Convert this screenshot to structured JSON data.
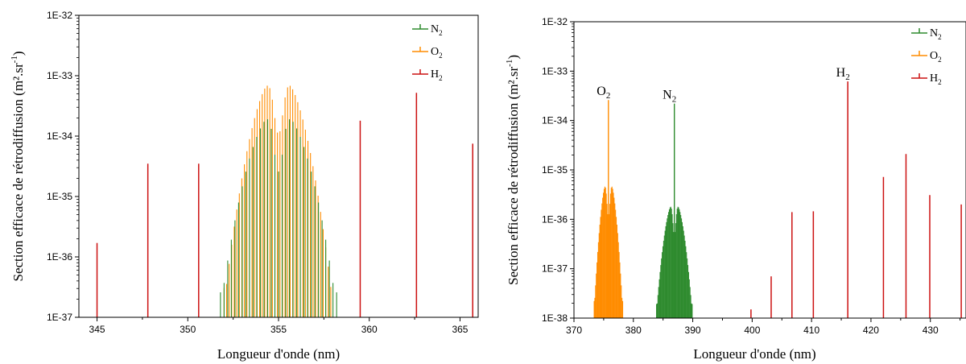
{
  "chart_data": [
    {
      "type": "bar",
      "xlabel": "Longueur d'onde (nm)",
      "ylabel": "Section efficace de rétrodiffusion (m².sr",
      "ylabel_sup": "-1",
      "ylabel_close": ")",
      "xlim": [
        344,
        366
      ],
      "xticks": [
        345,
        350,
        355,
        360,
        365
      ],
      "ylim": [
        1e-37,
        1e-32
      ],
      "yscale": "log",
      "yticks": [
        {
          "value": 1e-37,
          "label": "1E-37"
        },
        {
          "value": 1e-36,
          "label": "1E-36"
        },
        {
          "value": 1e-35,
          "label": "1E-35"
        },
        {
          "value": 1e-34,
          "label": "1E-34"
        },
        {
          "value": 1e-33,
          "label": "1E-33"
        },
        {
          "value": 1e-32,
          "label": "1E-32"
        }
      ],
      "legend_position": "top-right",
      "legend": [
        {
          "name": "N",
          "sub": "2",
          "color": "#2e8b2e"
        },
        {
          "name": "O",
          "sub": "2",
          "color": "#ff8c00"
        },
        {
          "name": "H",
          "sub": "2",
          "color": "#cc1111"
        }
      ],
      "series": [
        {
          "name": "O2",
          "color": "#ff8c00",
          "band": {
            "center": 355.0,
            "half_width": 3.0,
            "spacing": 0.14,
            "peak": 1.1e-33,
            "notch": 0.25
          }
        },
        {
          "name": "N2",
          "color": "#2e8b2e",
          "band": {
            "center": 355.0,
            "half_width": 3.2,
            "spacing": 0.2,
            "peak": 2.8e-34,
            "notch": 0.3
          }
        },
        {
          "name": "H2",
          "color": "#cc1111",
          "lines": [
            {
              "x": 345.0,
              "y": 1.7e-36
            },
            {
              "x": 347.8,
              "y": 3.5e-35
            },
            {
              "x": 350.6,
              "y": 3.5e-35
            },
            {
              "x": 359.5,
              "y": 1.8e-34
            },
            {
              "x": 362.6,
              "y": 5.2e-34
            },
            {
              "x": 365.7,
              "y": 7.5e-35
            }
          ]
        }
      ],
      "annotations": []
    },
    {
      "type": "bar",
      "xlabel": "Longueur d'onde (nm)",
      "ylabel": "Section efficace de rétrodiffusion (m².sr",
      "ylabel_sup": "-1",
      "ylabel_close": ")",
      "xlim": [
        370,
        436
      ],
      "xticks": [
        370,
        380,
        390,
        400,
        410,
        420,
        430
      ],
      "ylim": [
        1e-38,
        1e-32
      ],
      "yscale": "log",
      "yticks": [
        {
          "value": 1e-38,
          "label": "1E-38"
        },
        {
          "value": 1e-37,
          "label": "1E-37"
        },
        {
          "value": 1e-36,
          "label": "1E-36"
        },
        {
          "value": 1e-35,
          "label": "1E-35"
        },
        {
          "value": 1e-34,
          "label": "1E-34"
        },
        {
          "value": 1e-33,
          "label": "1E-33"
        },
        {
          "value": 1e-32,
          "label": "1E-32"
        }
      ],
      "legend_position": "top-right",
      "legend": [
        {
          "name": "N",
          "sub": "2",
          "color": "#2e8b2e"
        },
        {
          "name": "O",
          "sub": "2",
          "color": "#ff8c00"
        },
        {
          "name": "H",
          "sub": "2",
          "color": "#cc1111"
        }
      ],
      "series": [
        {
          "name": "O2",
          "color": "#ff8c00",
          "band": {
            "center": 375.8,
            "half_width": 2.4,
            "spacing": 0.12,
            "peak": 7.5e-36,
            "notch": 0.3
          },
          "peak_line": {
            "x": 375.8,
            "y": 2.6e-34
          }
        },
        {
          "name": "N2",
          "color": "#2e8b2e",
          "band": {
            "center": 386.9,
            "half_width": 3.0,
            "spacing": 0.12,
            "peak": 2.4e-36,
            "notch": 0.3
          },
          "peak_line": {
            "x": 386.9,
            "y": 2.2e-34
          }
        },
        {
          "name": "H2",
          "color": "#cc1111",
          "lines": [
            {
              "x": 399.8,
              "y": 1.5e-38
            },
            {
              "x": 403.2,
              "y": 7e-38
            },
            {
              "x": 406.7,
              "y": 1.4e-36
            },
            {
              "x": 410.3,
              "y": 1.45e-36
            },
            {
              "x": 416.1,
              "y": 6.2e-34
            },
            {
              "x": 422.1,
              "y": 7.2e-36
            },
            {
              "x": 425.9,
              "y": 2.1e-35
            },
            {
              "x": 429.9,
              "y": 3.1e-36
            },
            {
              "x": 435.2,
              "y": 2e-36
            }
          ]
        }
      ],
      "annotations": [
        {
          "name": "O",
          "sub": "2",
          "x": 375.8,
          "y": 2.6e-34
        },
        {
          "name": "N",
          "sub": "2",
          "x": 386.9,
          "y": 2.2e-34
        },
        {
          "name": "H",
          "sub": "2",
          "x": 416.1,
          "y": 6.2e-34
        }
      ]
    }
  ]
}
